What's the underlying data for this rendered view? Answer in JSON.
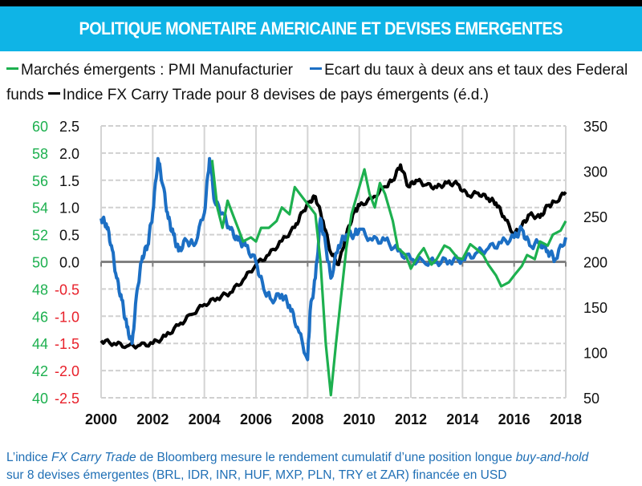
{
  "header": {
    "title": "POLITIQUE MONETAIRE AMERICAINE ET DEVISES EMERGENTES"
  },
  "colors": {
    "banner": "#0fb4e6",
    "green": "#1db04f",
    "blue": "#1c6fc4",
    "black": "#000000",
    "negative_tick": "#e8202a",
    "note": "#1f6fb5"
  },
  "note": {
    "line1_prefix": "L’indice ",
    "line1_italic": "FX Carry Trade",
    "line1_mid": " de Bloomberg mesure le rendement cumulatif d’une position longue ",
    "line1_italic2": "buy-and-hold",
    "line2": "sur 8 devises émergentes (BRL, IDR, INR, HUF, MXP, PLN, TRY et ZAR) financée en USD"
  },
  "chart_data": {
    "type": "line",
    "title": "POLITIQUE MONETAIRE AMERICAINE ET DEVISES EMERGENTES",
    "xlabel": "",
    "x_ticks": [
      "2000",
      "2002",
      "2004",
      "2006",
      "2008",
      "2010",
      "2012",
      "2014",
      "2016",
      "2018"
    ],
    "xlim": [
      2000,
      2018
    ],
    "legend": [
      {
        "label": "Marchés émergents : PMI Manufacturier",
        "color": "#1db04f"
      },
      {
        "label": "Ecart du taux à deux ans et taux des Federal funds",
        "color": "#1c6fc4"
      },
      {
        "label": "Indice FX Carry Trade pour 8 devises de pays émergents (é.d.)",
        "color": "#000000"
      }
    ],
    "legend_placement": "top",
    "axes": {
      "left_outer": {
        "ylim": [
          40,
          60
        ],
        "ticks": [
          "60",
          "58",
          "56",
          "54",
          "52",
          "50",
          "48",
          "46",
          "44",
          "42",
          "40"
        ],
        "color": "#1db04f"
      },
      "left_inner": {
        "ylim": [
          -2.5,
          2.5
        ],
        "ticks": [
          "2.5",
          "2.0",
          "1.5",
          "1.0",
          "0.5",
          "0.0",
          "-0.5",
          "-1.0",
          "-1.5",
          "-2.0",
          "-2.5"
        ]
      },
      "right": {
        "ylim": [
          50,
          350
        ],
        "ticks": [
          "350",
          "300",
          "250",
          "200",
          "150",
          "100",
          "50"
        ]
      }
    },
    "grid": true,
    "series": [
      {
        "name": "Marchés émergents : PMI Manufacturier",
        "axis": "left_outer",
        "x": [
          2004.3,
          2004.5,
          2004.7,
          2004.9,
          2005.1,
          2005.3,
          2005.5,
          2005.8,
          2006.0,
          2006.2,
          2006.5,
          2006.8,
          2007.0,
          2007.3,
          2007.5,
          2007.7,
          2007.9,
          2008.1,
          2008.3,
          2008.5,
          2008.7,
          2008.9,
          2009.1,
          2009.3,
          2009.5,
          2009.7,
          2010.0,
          2010.2,
          2010.4,
          2010.6,
          2010.8,
          2011.0,
          2011.3,
          2011.5,
          2011.8,
          2012.0,
          2012.3,
          2012.5,
          2012.8,
          2013.0,
          2013.3,
          2013.5,
          2013.8,
          2014.0,
          2014.3,
          2014.5,
          2014.8,
          2015.0,
          2015.3,
          2015.5,
          2015.8,
          2016.0,
          2016.3,
          2016.5,
          2016.8,
          2017.0,
          2017.3,
          2017.5,
          2017.8,
          2018.0
        ],
        "values": [
          57.5,
          54.0,
          52.5,
          54.5,
          53.5,
          52.5,
          51.5,
          51.8,
          51.5,
          52.5,
          52.5,
          53.0,
          54.0,
          53.5,
          55.5,
          55.0,
          54.5,
          54.0,
          53.5,
          50.0,
          44.0,
          40.2,
          44.0,
          47.5,
          51.0,
          53.5,
          55.5,
          56.8,
          55.0,
          54.0,
          55.8,
          55.0,
          53.0,
          51.0,
          50.5,
          49.5,
          50.5,
          51.0,
          49.8,
          50.2,
          51.2,
          51.0,
          50.3,
          50.2,
          51.3,
          51.0,
          50.5,
          49.8,
          49.0,
          48.2,
          48.5,
          49.0,
          49.7,
          50.5,
          50.2,
          51.5,
          51.2,
          52.0,
          52.3,
          53.0
        ]
      },
      {
        "name": "Ecart du taux à deux ans et taux des Federal funds",
        "axis": "left_inner",
        "x": [
          2000.0,
          2000.2,
          2000.4,
          2000.6,
          2000.8,
          2001.0,
          2001.2,
          2001.4,
          2001.6,
          2001.8,
          2002.0,
          2002.2,
          2002.4,
          2002.6,
          2002.8,
          2003.0,
          2003.3,
          2003.6,
          2004.0,
          2004.2,
          2004.4,
          2004.7,
          2005.0,
          2005.3,
          2005.6,
          2006.0,
          2006.3,
          2006.6,
          2007.0,
          2007.3,
          2007.6,
          2008.0,
          2008.1,
          2008.3,
          2008.5,
          2008.7,
          2008.9,
          2009.2,
          2009.5,
          2009.8,
          2010.0,
          2010.5,
          2011.0,
          2011.5,
          2012.0,
          2012.5,
          2013.0,
          2013.5,
          2014.0,
          2014.5,
          2015.0,
          2015.5,
          2016.0,
          2016.3,
          2016.6,
          2017.0,
          2017.3,
          2017.6,
          2018.0
        ],
        "values": [
          0.8,
          0.7,
          0.3,
          -0.3,
          -0.7,
          -1.2,
          -1.5,
          -0.5,
          0.1,
          0.3,
          0.9,
          1.9,
          1.4,
          0.8,
          0.5,
          0.2,
          0.4,
          0.3,
          0.9,
          1.9,
          1.1,
          0.9,
          0.6,
          0.4,
          0.3,
          0.0,
          -0.5,
          -0.7,
          -0.6,
          -0.8,
          -1.2,
          -1.8,
          -0.9,
          -0.3,
          0.8,
          0.3,
          -0.3,
          0.3,
          0.5,
          0.5,
          0.6,
          0.4,
          0.4,
          0.2,
          0.05,
          0.0,
          0.0,
          0.02,
          0.05,
          0.15,
          0.25,
          0.35,
          0.45,
          0.6,
          0.3,
          0.35,
          0.2,
          0.05,
          0.45
        ]
      },
      {
        "name": "Indice FX Carry Trade pour 8 devises de pays émergents (é.d.)",
        "axis": "right",
        "x": [
          2000.0,
          2000.5,
          2001.0,
          2001.5,
          2002.0,
          2002.5,
          2003.0,
          2003.5,
          2004.0,
          2004.5,
          2005.0,
          2005.5,
          2006.0,
          2006.5,
          2007.0,
          2007.5,
          2007.8,
          2008.1,
          2008.3,
          2008.6,
          2008.9,
          2009.2,
          2009.5,
          2009.8,
          2010.0,
          2010.5,
          2011.0,
          2011.3,
          2011.6,
          2011.9,
          2012.2,
          2012.6,
          2013.0,
          2013.4,
          2013.8,
          2014.2,
          2014.6,
          2015.0,
          2015.3,
          2015.6,
          2016.0,
          2016.3,
          2016.6,
          2017.0,
          2017.3,
          2017.6,
          2018.0
        ],
        "values": [
          113,
          110,
          107,
          108,
          110,
          118,
          130,
          142,
          153,
          160,
          166,
          180,
          197,
          208,
          223,
          238,
          255,
          267,
          272,
          245,
          210,
          197,
          230,
          255,
          262,
          270,
          283,
          290,
          307,
          283,
          290,
          285,
          282,
          287,
          286,
          273,
          276,
          270,
          265,
          250,
          230,
          240,
          252,
          249,
          262,
          266,
          277
        ]
      }
    ]
  }
}
